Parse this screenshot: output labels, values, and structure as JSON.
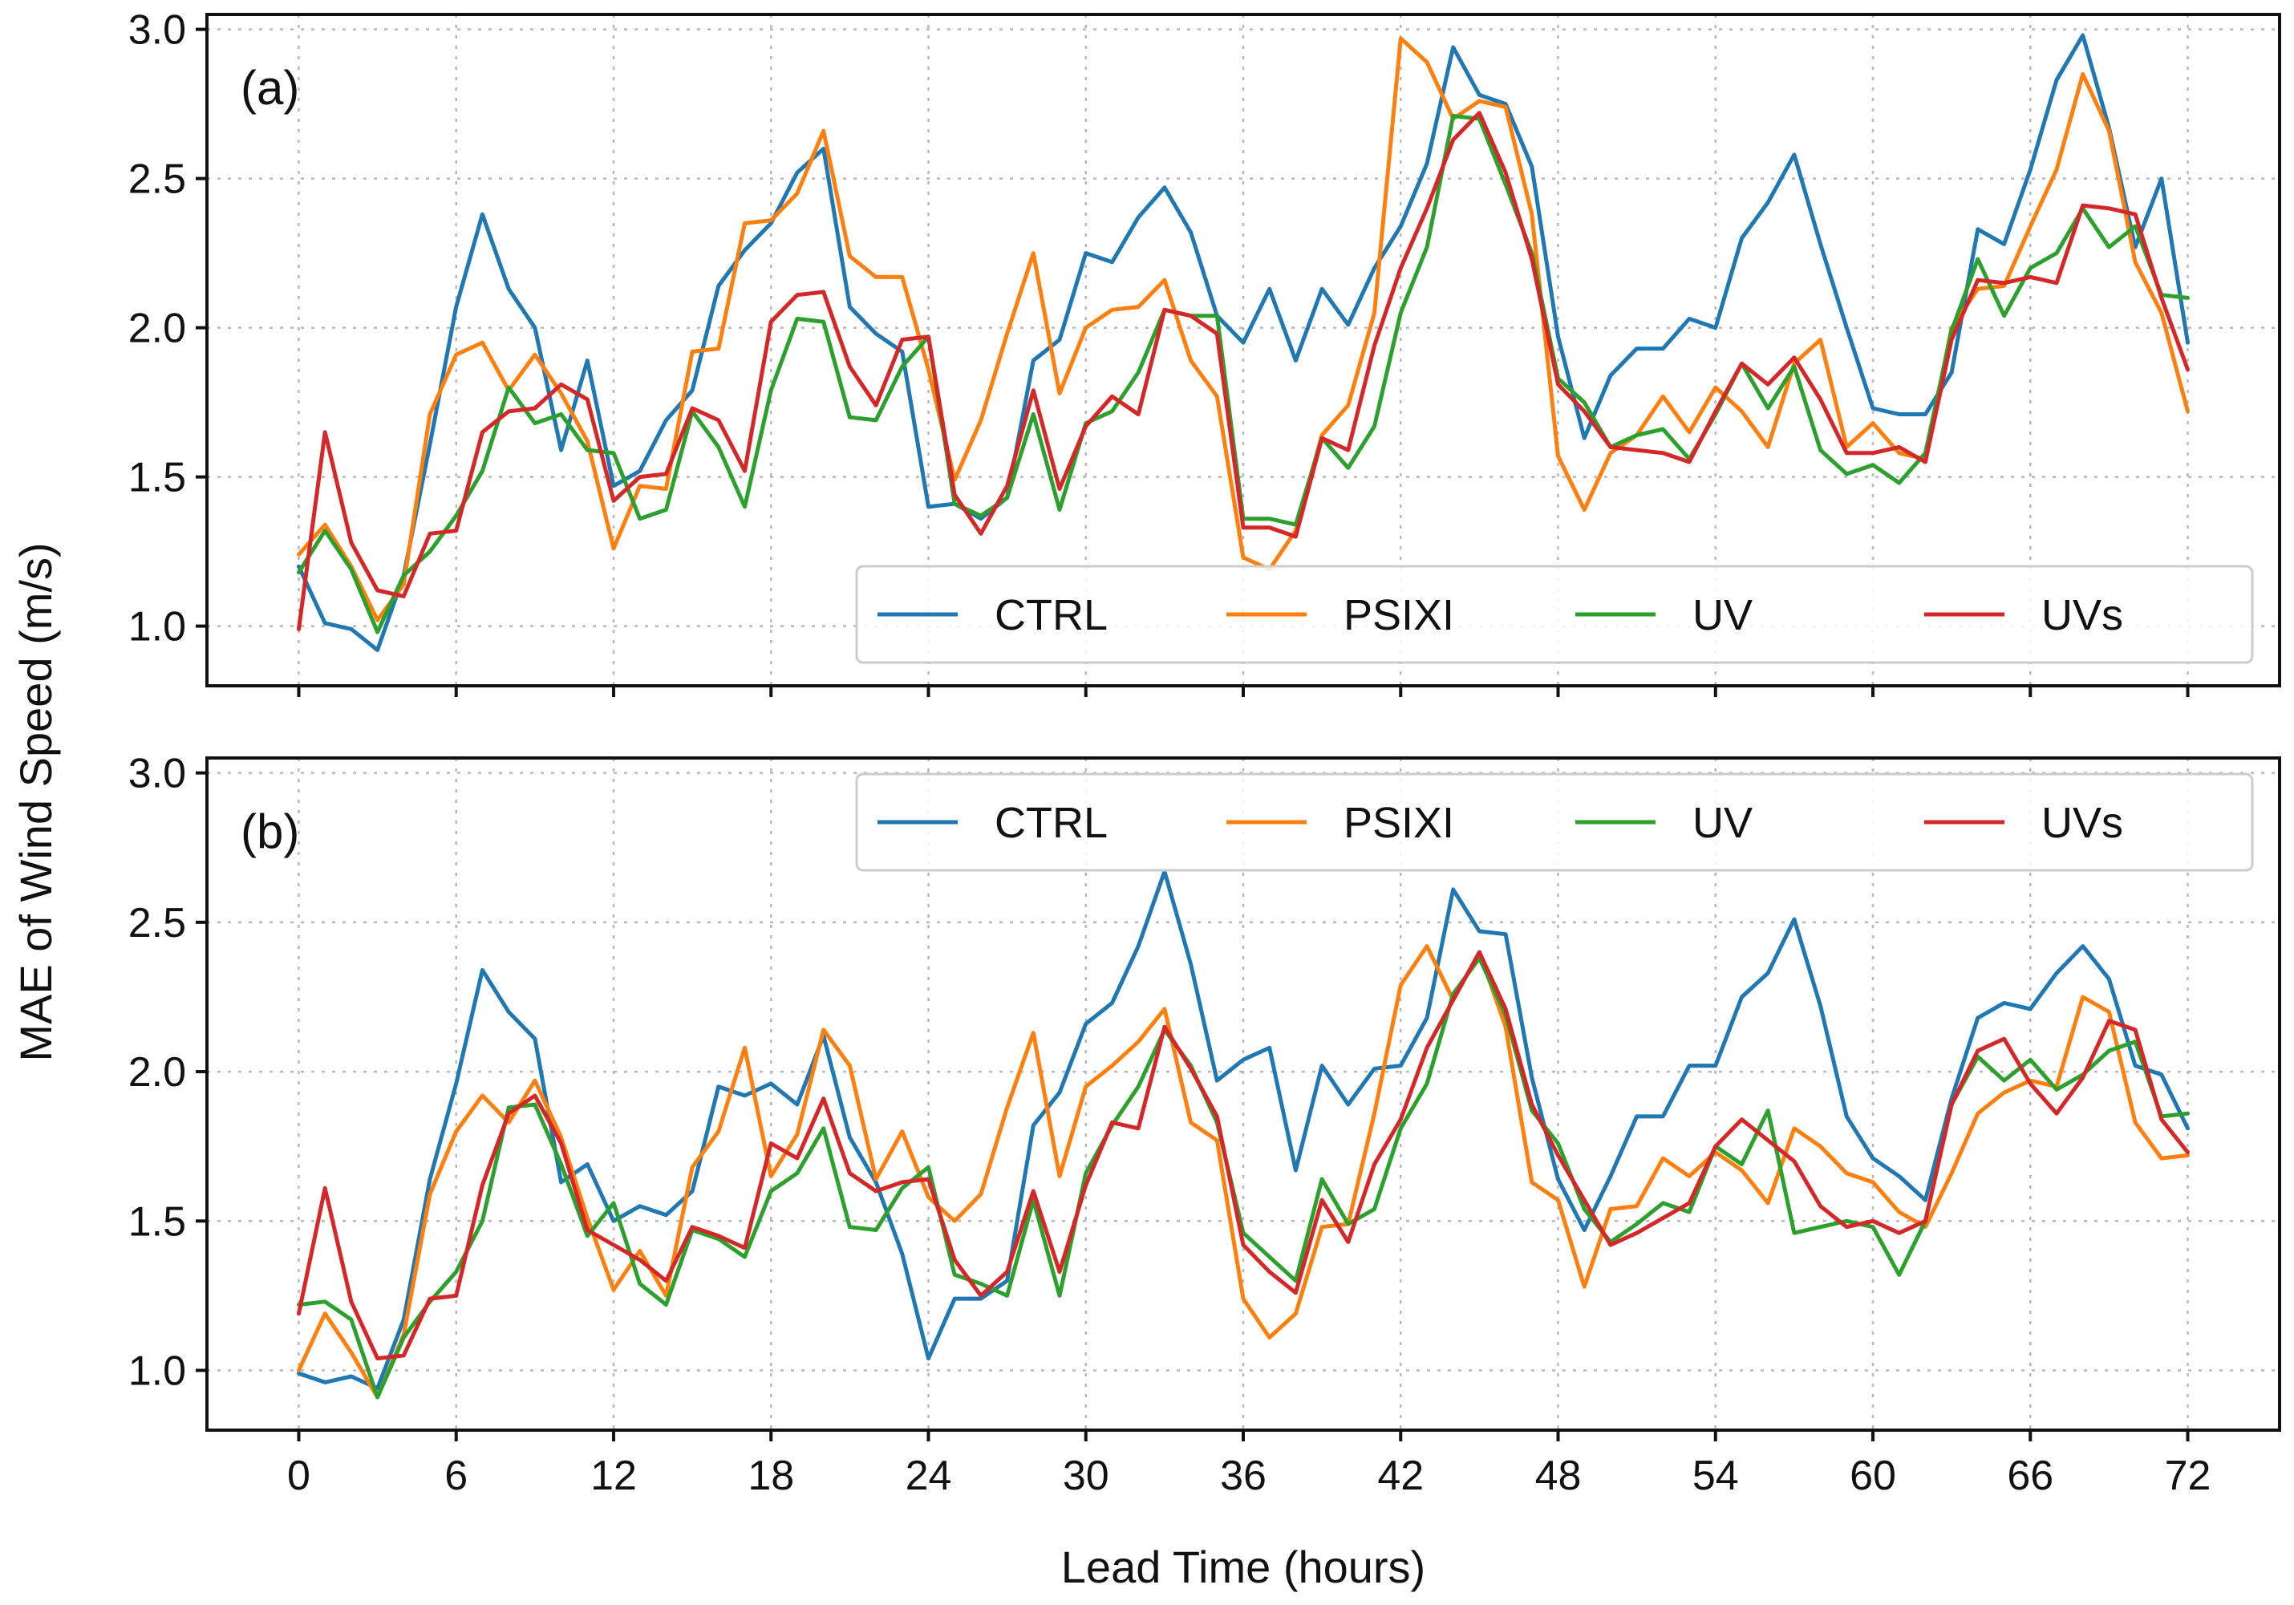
{
  "figure": {
    "ylabel": "MAE of Wind Speed (m/s)",
    "xlabel": "Lead Time (hours)"
  },
  "chart_data": [
    {
      "type": "line",
      "panel_label": "(a)",
      "xlabel": "Lead Time (hours)",
      "ylabel": "MAE of Wind Speed (m/s)",
      "xlim": [
        -3.5,
        75.5
      ],
      "ylim": [
        0.8,
        3.05
      ],
      "xticks": [
        0,
        6,
        12,
        18,
        24,
        30,
        36,
        42,
        48,
        54,
        60,
        66,
        72
      ],
      "yticks": [
        1.0,
        1.5,
        2.0,
        2.5,
        3.0
      ],
      "grid": true,
      "legend_position": "bottom-right",
      "x": [
        0,
        1,
        2,
        3,
        4,
        5,
        6,
        7,
        8,
        9,
        10,
        11,
        12,
        13,
        14,
        15,
        16,
        17,
        18,
        19,
        20,
        21,
        22,
        23,
        24,
        25,
        26,
        27,
        28,
        29,
        30,
        31,
        32,
        33,
        34,
        35,
        36,
        37,
        38,
        39,
        40,
        41,
        42,
        43,
        44,
        45,
        46,
        47,
        48,
        49,
        50,
        51,
        52,
        53,
        54,
        55,
        56,
        57,
        58,
        59,
        60,
        61,
        62,
        63,
        64,
        65,
        66,
        67,
        68,
        69,
        70,
        71,
        72
      ],
      "series": [
        {
          "name": "CTRL",
          "color": "#1f77b4",
          "values": [
            1.2,
            1.01,
            0.99,
            0.92,
            1.17,
            1.61,
            2.07,
            2.38,
            2.13,
            2.0,
            1.59,
            1.89,
            1.47,
            1.52,
            1.69,
            1.79,
            2.14,
            2.26,
            2.35,
            2.52,
            2.6,
            2.07,
            1.98,
            1.92,
            1.4,
            1.41,
            1.36,
            1.43,
            1.89,
            1.96,
            2.25,
            2.22,
            2.37,
            2.47,
            2.32,
            2.04,
            1.95,
            2.13,
            1.89,
            2.13,
            2.01,
            2.2,
            2.34,
            2.55,
            2.94,
            2.78,
            2.75,
            2.54,
            1.97,
            1.63,
            1.84,
            1.93,
            1.93,
            2.03,
            2.0,
            2.3,
            2.42,
            2.58,
            2.28,
            2.0,
            1.73,
            1.71,
            1.71,
            1.85,
            2.33,
            2.28,
            2.53,
            2.83,
            2.98,
            2.67,
            2.27,
            2.5,
            1.95
          ]
        },
        {
          "name": "PSIXI",
          "color": "#ff7f0e",
          "values": [
            1.24,
            1.34,
            1.2,
            1.02,
            1.14,
            1.71,
            1.91,
            1.95,
            1.79,
            1.91,
            1.78,
            1.62,
            1.26,
            1.47,
            1.46,
            1.92,
            1.93,
            2.35,
            2.36,
            2.45,
            2.66,
            2.24,
            2.17,
            2.17,
            1.86,
            1.49,
            1.69,
            1.98,
            2.25,
            1.78,
            2.0,
            2.06,
            2.07,
            2.16,
            1.89,
            1.77,
            1.23,
            1.19,
            1.32,
            1.64,
            1.74,
            2.05,
            2.97,
            2.89,
            2.7,
            2.76,
            2.74,
            2.38,
            1.57,
            1.39,
            1.58,
            1.64,
            1.77,
            1.65,
            1.8,
            1.72,
            1.6,
            1.88,
            1.96,
            1.6,
            1.68,
            1.58,
            1.56,
            2.0,
            2.13,
            2.14,
            2.34,
            2.53,
            2.85,
            2.66,
            2.22,
            2.05,
            1.72
          ]
        },
        {
          "name": "UV",
          "color": "#2ca02c",
          "values": [
            1.18,
            1.32,
            1.19,
            0.98,
            1.17,
            1.25,
            1.37,
            1.52,
            1.8,
            1.68,
            1.71,
            1.59,
            1.58,
            1.36,
            1.39,
            1.72,
            1.6,
            1.4,
            1.79,
            2.03,
            2.02,
            1.7,
            1.69,
            1.87,
            1.97,
            1.41,
            1.37,
            1.43,
            1.71,
            1.39,
            1.68,
            1.72,
            1.85,
            2.06,
            2.04,
            2.04,
            1.36,
            1.36,
            1.34,
            1.63,
            1.53,
            1.67,
            2.05,
            2.27,
            2.71,
            2.7,
            2.48,
            2.25,
            1.83,
            1.75,
            1.6,
            1.64,
            1.66,
            1.56,
            1.71,
            1.88,
            1.73,
            1.87,
            1.59,
            1.51,
            1.54,
            1.48,
            1.58,
            1.99,
            2.23,
            2.04,
            2.2,
            2.25,
            2.4,
            2.27,
            2.34,
            2.11,
            2.1
          ]
        },
        {
          "name": "UVs",
          "color": "#d62728",
          "values": [
            0.99,
            1.65,
            1.28,
            1.12,
            1.1,
            1.31,
            1.32,
            1.65,
            1.72,
            1.73,
            1.81,
            1.76,
            1.42,
            1.5,
            1.51,
            1.73,
            1.69,
            1.52,
            2.02,
            2.11,
            2.12,
            1.87,
            1.74,
            1.96,
            1.97,
            1.44,
            1.31,
            1.47,
            1.79,
            1.46,
            1.67,
            1.77,
            1.71,
            2.06,
            2.04,
            1.98,
            1.33,
            1.33,
            1.3,
            1.63,
            1.59,
            1.94,
            2.2,
            2.4,
            2.63,
            2.72,
            2.52,
            2.23,
            1.81,
            1.72,
            1.6,
            1.59,
            1.58,
            1.55,
            1.72,
            1.88,
            1.81,
            1.9,
            1.76,
            1.58,
            1.58,
            1.6,
            1.55,
            1.96,
            2.16,
            2.15,
            2.17,
            2.15,
            2.41,
            2.4,
            2.38,
            2.1,
            1.86
          ]
        }
      ]
    },
    {
      "type": "line",
      "panel_label": "(b)",
      "xlabel": "Lead Time (hours)",
      "ylabel": "MAE of Wind Speed (m/s)",
      "xlim": [
        -3.5,
        75.5
      ],
      "ylim": [
        0.8,
        3.05
      ],
      "xticks": [
        0,
        6,
        12,
        18,
        24,
        30,
        36,
        42,
        48,
        54,
        60,
        66,
        72
      ],
      "yticks": [
        1.0,
        1.5,
        2.0,
        2.5,
        3.0
      ],
      "grid": true,
      "legend_position": "top-right",
      "x": [
        0,
        1,
        2,
        3,
        4,
        5,
        6,
        7,
        8,
        9,
        10,
        11,
        12,
        13,
        14,
        15,
        16,
        17,
        18,
        19,
        20,
        21,
        22,
        23,
        24,
        25,
        26,
        27,
        28,
        29,
        30,
        31,
        32,
        33,
        34,
        35,
        36,
        37,
        38,
        39,
        40,
        41,
        42,
        43,
        44,
        45,
        46,
        47,
        48,
        49,
        50,
        51,
        52,
        53,
        54,
        55,
        56,
        57,
        58,
        59,
        60,
        61,
        62,
        63,
        64,
        65,
        66,
        67,
        68,
        69,
        70,
        71,
        72
      ],
      "series": [
        {
          "name": "CTRL",
          "color": "#1f77b4",
          "values": [
            0.99,
            0.96,
            0.98,
            0.94,
            1.17,
            1.64,
            1.96,
            2.34,
            2.2,
            2.11,
            1.63,
            1.69,
            1.5,
            1.55,
            1.52,
            1.6,
            1.95,
            1.92,
            1.96,
            1.89,
            2.12,
            1.78,
            1.63,
            1.39,
            1.04,
            1.24,
            1.24,
            1.3,
            1.82,
            1.93,
            2.16,
            2.23,
            2.42,
            2.67,
            2.36,
            1.97,
            2.04,
            2.08,
            1.67,
            2.02,
            1.89,
            2.01,
            2.02,
            2.18,
            2.61,
            2.47,
            2.46,
            1.98,
            1.64,
            1.47,
            1.65,
            1.85,
            1.85,
            2.02,
            2.02,
            2.25,
            2.33,
            2.51,
            2.22,
            1.85,
            1.71,
            1.65,
            1.57,
            1.91,
            2.18,
            2.23,
            2.21,
            2.33,
            2.42,
            2.31,
            2.02,
            1.99,
            1.81
          ]
        },
        {
          "name": "PSIXI",
          "color": "#ff7f0e",
          "values": [
            1.0,
            1.19,
            1.06,
            0.91,
            1.12,
            1.59,
            1.8,
            1.92,
            1.83,
            1.97,
            1.78,
            1.51,
            1.27,
            1.4,
            1.25,
            1.68,
            1.8,
            2.08,
            1.65,
            1.79,
            2.14,
            2.02,
            1.64,
            1.8,
            1.58,
            1.5,
            1.59,
            1.88,
            2.13,
            1.65,
            1.95,
            2.02,
            2.1,
            2.21,
            1.83,
            1.77,
            1.24,
            1.11,
            1.19,
            1.48,
            1.49,
            1.86,
            2.29,
            2.42,
            2.24,
            2.4,
            2.15,
            1.63,
            1.57,
            1.28,
            1.54,
            1.55,
            1.71,
            1.65,
            1.73,
            1.67,
            1.56,
            1.81,
            1.75,
            1.66,
            1.63,
            1.53,
            1.48,
            1.66,
            1.86,
            1.93,
            1.97,
            1.95,
            2.25,
            2.2,
            1.83,
            1.71,
            1.72
          ]
        },
        {
          "name": "UV",
          "color": "#2ca02c",
          "values": [
            1.22,
            1.23,
            1.17,
            0.91,
            1.11,
            1.23,
            1.33,
            1.5,
            1.88,
            1.89,
            1.69,
            1.45,
            1.56,
            1.29,
            1.22,
            1.47,
            1.44,
            1.38,
            1.6,
            1.66,
            1.81,
            1.48,
            1.47,
            1.61,
            1.68,
            1.32,
            1.29,
            1.25,
            1.57,
            1.25,
            1.66,
            1.82,
            1.95,
            2.14,
            2.02,
            1.83,
            1.46,
            1.38,
            1.3,
            1.64,
            1.49,
            1.54,
            1.81,
            1.96,
            2.26,
            2.38,
            2.19,
            1.87,
            1.76,
            1.54,
            1.43,
            1.49,
            1.56,
            1.53,
            1.75,
            1.69,
            1.87,
            1.46,
            1.48,
            1.5,
            1.48,
            1.32,
            1.5,
            1.89,
            2.05,
            1.97,
            2.04,
            1.94,
            1.99,
            2.07,
            2.1,
            1.85,
            1.86
          ]
        },
        {
          "name": "UVs",
          "color": "#d62728",
          "values": [
            1.19,
            1.61,
            1.23,
            1.04,
            1.05,
            1.24,
            1.25,
            1.62,
            1.86,
            1.92,
            1.76,
            1.47,
            1.42,
            1.37,
            1.3,
            1.48,
            1.45,
            1.41,
            1.76,
            1.71,
            1.91,
            1.66,
            1.6,
            1.63,
            1.64,
            1.37,
            1.25,
            1.33,
            1.6,
            1.33,
            1.62,
            1.83,
            1.81,
            2.15,
            2.01,
            1.85,
            1.42,
            1.33,
            1.26,
            1.57,
            1.43,
            1.69,
            1.84,
            2.08,
            2.24,
            2.4,
            2.21,
            1.89,
            1.72,
            1.57,
            1.42,
            1.46,
            1.51,
            1.56,
            1.75,
            1.84,
            1.77,
            1.7,
            1.55,
            1.48,
            1.5,
            1.46,
            1.5,
            1.89,
            2.07,
            2.11,
            1.96,
            1.86,
            1.98,
            2.17,
            2.14,
            1.84,
            1.73
          ]
        }
      ]
    }
  ]
}
